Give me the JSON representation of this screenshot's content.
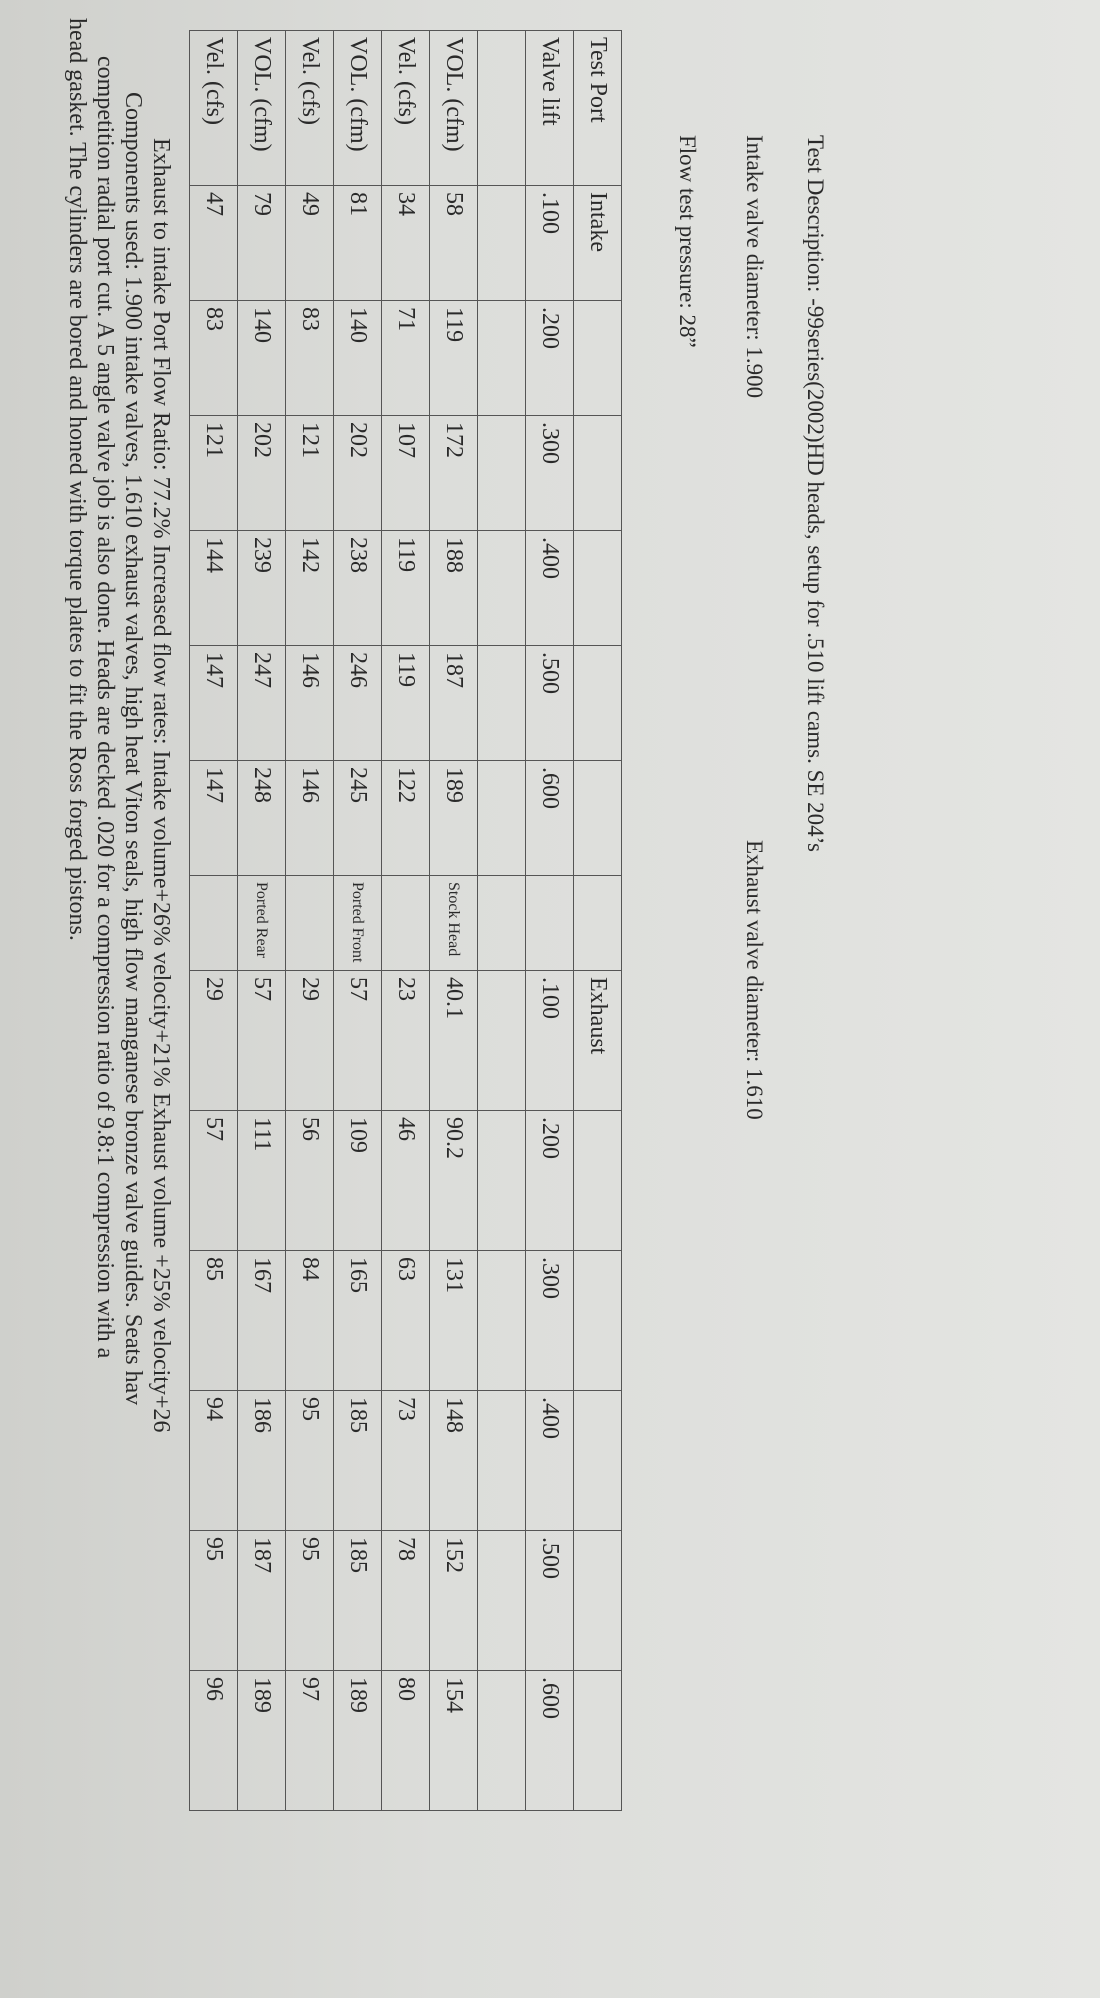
{
  "header": {
    "description": "Test Description: -99series(2002)HD heads, setup for .510 lift cams. SE 204’s",
    "intake_diameter": "Intake valve diameter: 1.900",
    "exhaust_diameter": "Exhaust valve diameter: 1.610",
    "pressure": "Flow test pressure:   28”"
  },
  "table": {
    "rows": [
      [
        "Test Port",
        "Intake",
        "",
        "",
        "",
        "",
        "",
        "",
        "Exhaust",
        "",
        "",
        "",
        "",
        ""
      ],
      [
        "Valve lift",
        ".100",
        ".200",
        ".300",
        ".400",
        ".500",
        ".600",
        "",
        ".100",
        ".200",
        ".300",
        ".400",
        ".500",
        ".600"
      ],
      [
        "",
        "",
        "",
        "",
        "",
        "",
        "",
        "",
        "",
        "",
        "",
        "",
        "",
        ""
      ],
      [
        "VOL. (cfm)",
        "58",
        "119",
        "172",
        "188",
        "187",
        "189",
        "Stock Head",
        "40.1",
        "90.2",
        "131",
        "148",
        "152",
        "154"
      ],
      [
        "Vel.  (cfs)",
        "34",
        "71",
        "107",
        "119",
        "119",
        "122",
        "",
        "23",
        "46",
        "63",
        "73",
        "78",
        "80"
      ],
      [
        "VOL. (cfm)",
        "81",
        "140",
        "202",
        "238",
        "246",
        "245",
        "Ported Front",
        "57",
        "109",
        "165",
        "185",
        "185",
        "189"
      ],
      [
        "Vel.  (cfs)",
        "49",
        "83",
        "121",
        "142",
        "146",
        "146",
        "",
        "29",
        "56",
        "84",
        "95",
        "95",
        "97"
      ],
      [
        "VOL. (cfm)",
        "79",
        "140",
        "202",
        "239",
        "247",
        "248",
        "Ported Rear",
        "57",
        "111",
        "167",
        "186",
        "187",
        "189"
      ],
      [
        "Vel.  (cfs)",
        "47",
        "83",
        "121",
        "144",
        "147",
        "147",
        "",
        "29",
        "57",
        "85",
        "94",
        "95",
        "96"
      ]
    ]
  },
  "notes": [
    "Exhaust to intake Port Flow Ratio: 77.2% Increased flow rates: Intake volume+26% velocity+21% Exhaust volume +25% velocity+26",
    "Components used: 1.900 intake valves, 1.610 exhaust valves, high heat Viton seals, high flow manganese bronze valve guides. Seats hav",
    "competition radial port cut. A 5 angle valve job is also done. Heads are decked .020 for a compression ratio of 9.8:1 compression with a",
    "head gasket. The cylinders are bored and honed with torque plates to fit the Ross forged pistons."
  ]
}
